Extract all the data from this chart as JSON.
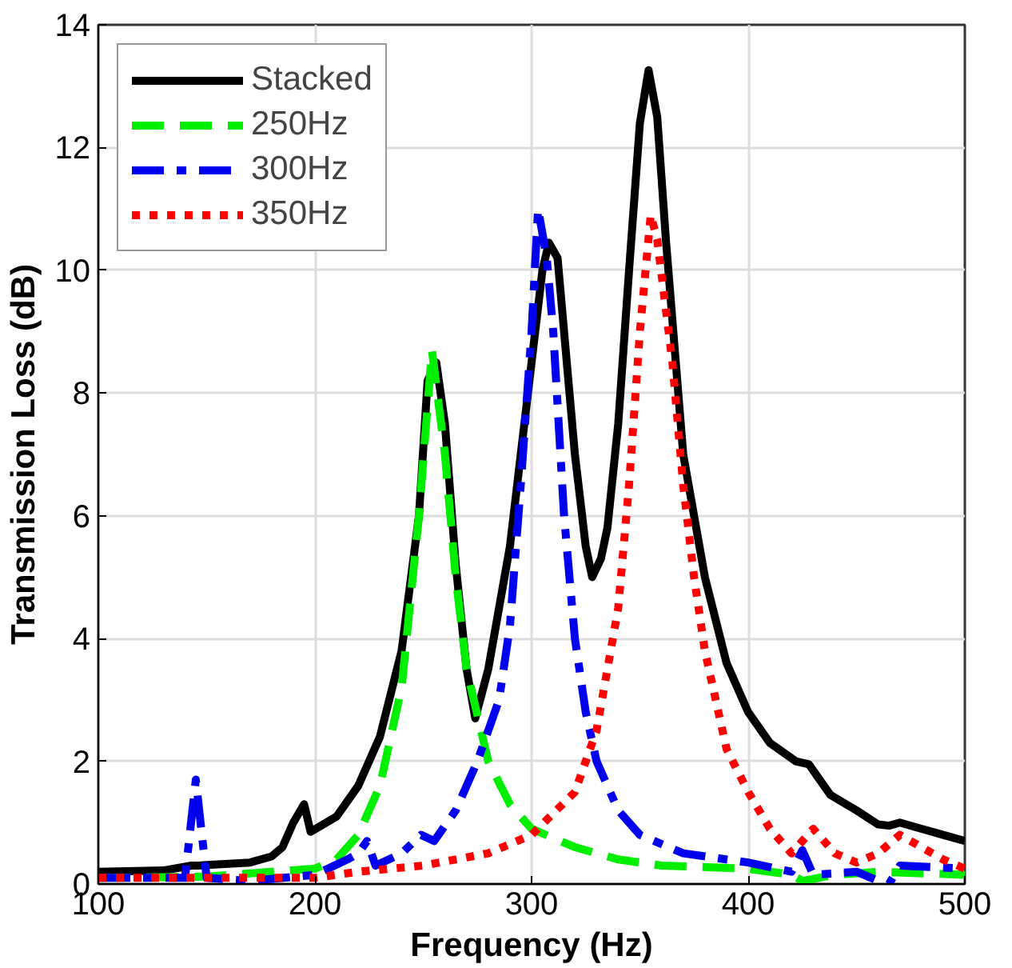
{
  "chart_data": {
    "type": "line",
    "xlabel": "Frequency (Hz)",
    "ylabel": "Transmission Loss (dB)",
    "xlim": [
      100,
      500
    ],
    "xticks": [
      100,
      200,
      300,
      400,
      500
    ],
    "ylim": [
      0,
      14
    ],
    "yticks": [
      0,
      2,
      4,
      6,
      8,
      10,
      12,
      14
    ],
    "grid": true,
    "legend": "top left",
    "marker": "none",
    "series": [
      {
        "name": "Stacked",
        "color": "#000000",
        "line_style": "solid",
        "x": [
          100,
          130,
          143,
          146,
          170,
          180,
          185,
          190,
          195,
          198,
          210,
          220,
          230,
          240,
          248,
          252,
          256,
          260,
          265,
          270,
          274,
          280,
          290,
          300,
          305,
          308,
          312,
          315,
          320,
          325,
          328,
          332,
          335,
          340,
          345,
          350,
          354,
          358,
          362,
          370,
          380,
          390,
          400,
          410,
          422,
          428,
          438,
          450,
          460,
          465,
          470,
          480,
          490,
          500
        ],
        "values": [
          0.2,
          0.22,
          0.3,
          0.3,
          0.35,
          0.45,
          0.6,
          1.0,
          1.3,
          0.85,
          1.1,
          1.6,
          2.4,
          3.8,
          6.0,
          8.2,
          8.5,
          7.5,
          5.2,
          3.5,
          2.7,
          3.5,
          5.5,
          8.5,
          10.0,
          10.45,
          10.2,
          9.0,
          7.0,
          5.5,
          5.0,
          5.3,
          5.8,
          7.5,
          10.0,
          12.4,
          13.26,
          12.5,
          10.5,
          7.0,
          5.0,
          3.6,
          2.8,
          2.3,
          2.0,
          1.95,
          1.45,
          1.2,
          0.97,
          0.95,
          1.0,
          0.9,
          0.8,
          0.7
        ]
      },
      {
        "name": "250Hz",
        "color": "#00ee00",
        "line_style": "dashed",
        "x": [
          100,
          150,
          200,
          210,
          220,
          230,
          240,
          248,
          254,
          260,
          265,
          270,
          280,
          290,
          300,
          310,
          320,
          340,
          360,
          400,
          420,
          425,
          440,
          460,
          500
        ],
        "values": [
          0.1,
          0.12,
          0.25,
          0.4,
          0.8,
          1.6,
          3.2,
          6.0,
          8.7,
          7.0,
          5.0,
          3.5,
          2.0,
          1.3,
          0.9,
          0.75,
          0.6,
          0.4,
          0.3,
          0.25,
          0.15,
          0.05,
          0.15,
          0.2,
          0.15
        ]
      },
      {
        "name": "300Hz",
        "color": "#0000ee",
        "line_style": "dashdot",
        "x": [
          100,
          140,
          145,
          150,
          170,
          200,
          215,
          220,
          224,
          228,
          240,
          249,
          255,
          265,
          275,
          285,
          290,
          295,
          300,
          303,
          307,
          310,
          315,
          320,
          325,
          330,
          340,
          350,
          370,
          400,
          420,
          425,
          430,
          450,
          460,
          465,
          470,
          500
        ],
        "values": [
          0.1,
          0.1,
          1.7,
          0.1,
          0.05,
          0.15,
          0.4,
          0.5,
          0.7,
          0.3,
          0.5,
          0.8,
          0.7,
          1.2,
          2.0,
          3.0,
          4.2,
          6.5,
          9.0,
          11.0,
          10.2,
          9.0,
          6.0,
          4.0,
          2.8,
          2.0,
          1.2,
          0.8,
          0.5,
          0.35,
          0.2,
          0.55,
          0.15,
          0.2,
          0.05,
          0.0,
          0.3,
          0.25
        ]
      },
      {
        "name": "350Hz",
        "color": "#ff0000",
        "line_style": "dotted",
        "x": [
          100,
          200,
          220,
          250,
          280,
          300,
          320,
          330,
          340,
          345,
          350,
          355,
          358,
          365,
          370,
          375,
          380,
          390,
          400,
          410,
          420,
          430,
          440,
          450,
          460,
          470,
          480,
          490,
          500
        ],
        "values": [
          0.1,
          0.1,
          0.2,
          0.3,
          0.5,
          0.8,
          1.5,
          2.5,
          4.5,
          6.5,
          9.0,
          10.9,
          10.5,
          8.5,
          6.5,
          5.0,
          3.8,
          2.2,
          1.5,
          0.9,
          0.5,
          0.9,
          0.5,
          0.35,
          0.5,
          0.8,
          0.6,
          0.4,
          0.25
        ]
      }
    ]
  }
}
